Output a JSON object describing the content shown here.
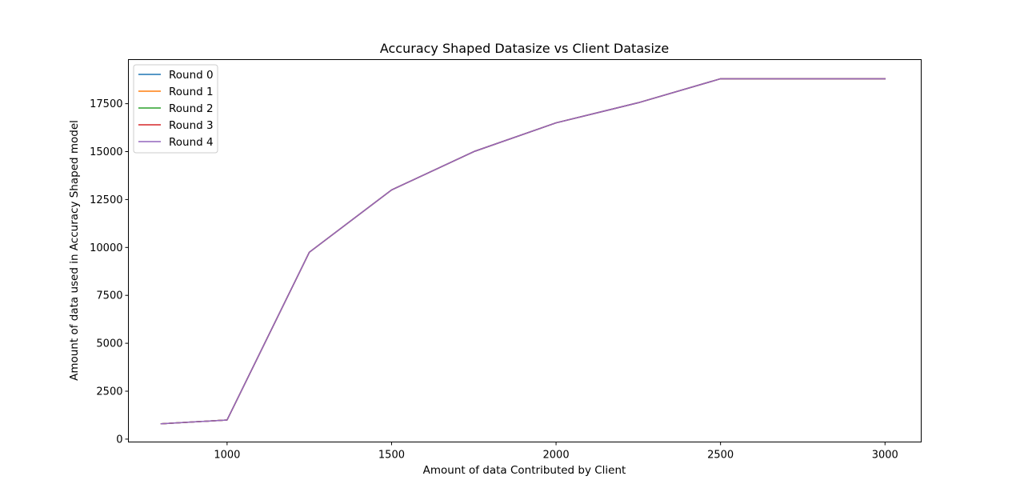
{
  "chart_data": {
    "type": "line",
    "title": "Accuracy Shaped Datasize vs Client Datasize",
    "xlabel": "Amount of data Contributed by Client",
    "ylabel": "Amount of data used in Accuracy Shaped model",
    "xlim": [
      700,
      3110
    ],
    "ylim": [
      -150,
      19800
    ],
    "xticks": [
      1000,
      1500,
      2000,
      2500,
      3000
    ],
    "xtick_labels": [
      "1000",
      "1500",
      "2000",
      "2500",
      "3000"
    ],
    "yticks": [
      0,
      2500,
      5000,
      7500,
      10000,
      12500,
      15000,
      17500
    ],
    "ytick_labels": [
      "0",
      "2500",
      "5000",
      "7500",
      "10000",
      "12500",
      "15000",
      "17500"
    ],
    "grid": false,
    "legend_position": "top-left",
    "x": [
      800,
      1000,
      1250,
      1500,
      1750,
      2000,
      2250,
      2500,
      2750,
      3000
    ],
    "series": [
      {
        "name": "Round 0",
        "color": "#1f77b4",
        "values": [
          800,
          1000,
          9750,
          13000,
          15000,
          16500,
          17550,
          18800,
          18800,
          18800
        ]
      },
      {
        "name": "Round 1",
        "color": "#ff7f0e",
        "values": [
          800,
          1000,
          9750,
          13000,
          15000,
          16500,
          17550,
          18800,
          18800,
          18800
        ]
      },
      {
        "name": "Round 2",
        "color": "#2ca02c",
        "values": [
          800,
          1000,
          9750,
          13000,
          15000,
          16500,
          17550,
          18800,
          18800,
          18800
        ]
      },
      {
        "name": "Round 3",
        "color": "#d62728",
        "values": [
          800,
          1000,
          9750,
          13000,
          15000,
          16500,
          17550,
          18800,
          18800,
          18800
        ]
      },
      {
        "name": "Round 4",
        "color": "#9467bd",
        "values": [
          800,
          1000,
          9750,
          13000,
          15000,
          16500,
          17550,
          18800,
          18800,
          18800
        ]
      }
    ]
  }
}
